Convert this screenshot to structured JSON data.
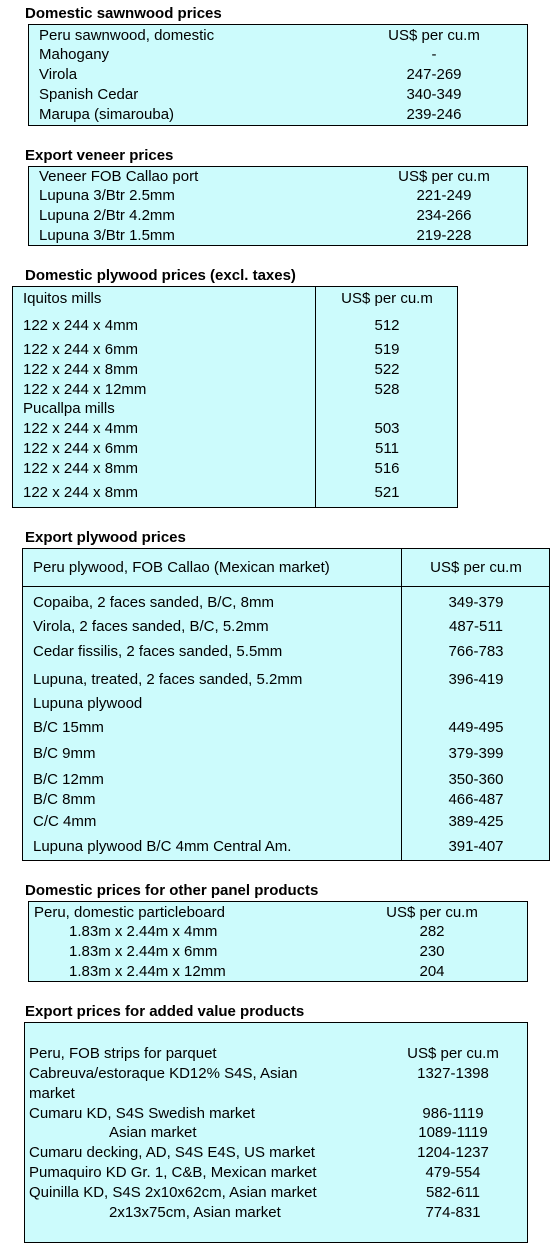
{
  "sections": [
    {
      "id": "domestic-sawnwood",
      "title": "Domestic sawnwood prices",
      "header": {
        "label": "Peru sawnwood, domestic",
        "unit": "US$ per cu.m"
      },
      "rows": [
        {
          "label": "Mahogany",
          "value": "-"
        },
        {
          "label": "Virola",
          "value": "247-269"
        },
        {
          "label": "Spanish Cedar",
          "value": "340-349"
        },
        {
          "label": "Marupa (simarouba)",
          "value": "239-246"
        }
      ]
    },
    {
      "id": "export-veneer",
      "title": "Export veneer prices",
      "header": {
        "label": "Veneer  FOB Callao port",
        "unit": "US$ per cu.m"
      },
      "rows": [
        {
          "label": "Lupuna 3/Btr 2.5mm",
          "value": "221-249"
        },
        {
          "label": "Lupuna 2/Btr 4.2mm",
          "value": "234-266"
        },
        {
          "label": "Lupuna 3/Btr 1.5mm",
          "value": "219-228"
        }
      ]
    },
    {
      "id": "domestic-plywood",
      "title": "Domestic plywood prices (excl. taxes)",
      "header": {
        "label": "Iquitos mills",
        "unit": "US$ per cu.m"
      },
      "rows": [
        {
          "label": "122 x 244 x 4mm",
          "value": "512"
        },
        {
          "label": "122 x 244 x 6mm",
          "value": "519"
        },
        {
          "label": "122 x 244 x 8mm",
          "value": "522"
        },
        {
          "label": "122 x 244 x 12mm",
          "value": "528"
        },
        {
          "label": "Pucallpa mills",
          "value": ""
        },
        {
          "label": "122 x 244 x 4mm",
          "value": "503"
        },
        {
          "label": "122 x 244 x 6mm",
          "value": "511"
        },
        {
          "label": "122 x 244 x 8mm",
          "value": "516"
        },
        {
          "label": "122 x 244 x 8mm",
          "value": "521"
        }
      ]
    },
    {
      "id": "export-plywood",
      "title": "Export plywood prices",
      "header": {
        "label": "Peru plywood, FOB Callao (Mexican market)",
        "unit": "US$ per cu.m"
      },
      "rows": [
        {
          "label": "Copaiba, 2 faces sanded, B/C, 8mm",
          "value": "349-379"
        },
        {
          "label": "Virola, 2 faces sanded, B/C, 5.2mm",
          "value": "487-511"
        },
        {
          "label": "Cedar fissilis, 2 faces sanded, 5.5mm",
          "value": "766-783"
        },
        {
          "label": "Lupuna, treated, 2 faces sanded, 5.2mm",
          "value": "396-419"
        },
        {
          "label": "Lupuna plywood",
          "value": ""
        },
        {
          "label": "B/C 15mm",
          "value": "449-495"
        },
        {
          "label": "B/C 9mm",
          "value": "379-399"
        },
        {
          "label": "B/C 12mm",
          "value": "350-360"
        },
        {
          "label": "B/C 8mm",
          "value": "466-487"
        },
        {
          "label": "C/C 4mm",
          "value": "389-425"
        },
        {
          "label": "Lupuna plywood B/C 4mm Central Am.",
          "value": "391-407"
        }
      ]
    },
    {
      "id": "other-panel",
      "title": "Domestic prices for other panel products",
      "header": {
        "label": "Peru, domestic particleboard",
        "unit": "US$ per cu.m"
      },
      "rows": [
        {
          "label": "1.83m x 2.44m x 4mm",
          "value": "282"
        },
        {
          "label": "1.83m x 2.44m x 6mm",
          "value": "230"
        },
        {
          "label": "1.83m x 2.44m x 12mm",
          "value": "204"
        }
      ]
    },
    {
      "id": "added-value",
      "title": "Export prices for added value products",
      "header": {
        "label": "Peru, FOB strips for parquet",
        "unit": "US$ per cu.m"
      },
      "rows": [
        {
          "label": "Cabreuva/estoraque KD12% S4S, Asian",
          "value": "1327-1398"
        },
        {
          "label": "market",
          "value": ""
        },
        {
          "label": "Cumaru KD, S4S     Swedish market",
          "value": "986-1119"
        },
        {
          "label": "Asian market",
          "value": "1089-1119"
        },
        {
          "label": "Cumaru decking, AD, S4S E4S,  US market",
          "value": "1204-1237"
        },
        {
          "label": "Pumaquiro KD Gr. 1, C&B,  Mexican market",
          "value": "479-554"
        },
        {
          "label": "Quinilla KD, S4S 2x10x62cm,  Asian market",
          "value": "582-611"
        },
        {
          "label": "2x13x75cm, Asian market",
          "value": "774-831"
        }
      ]
    }
  ]
}
